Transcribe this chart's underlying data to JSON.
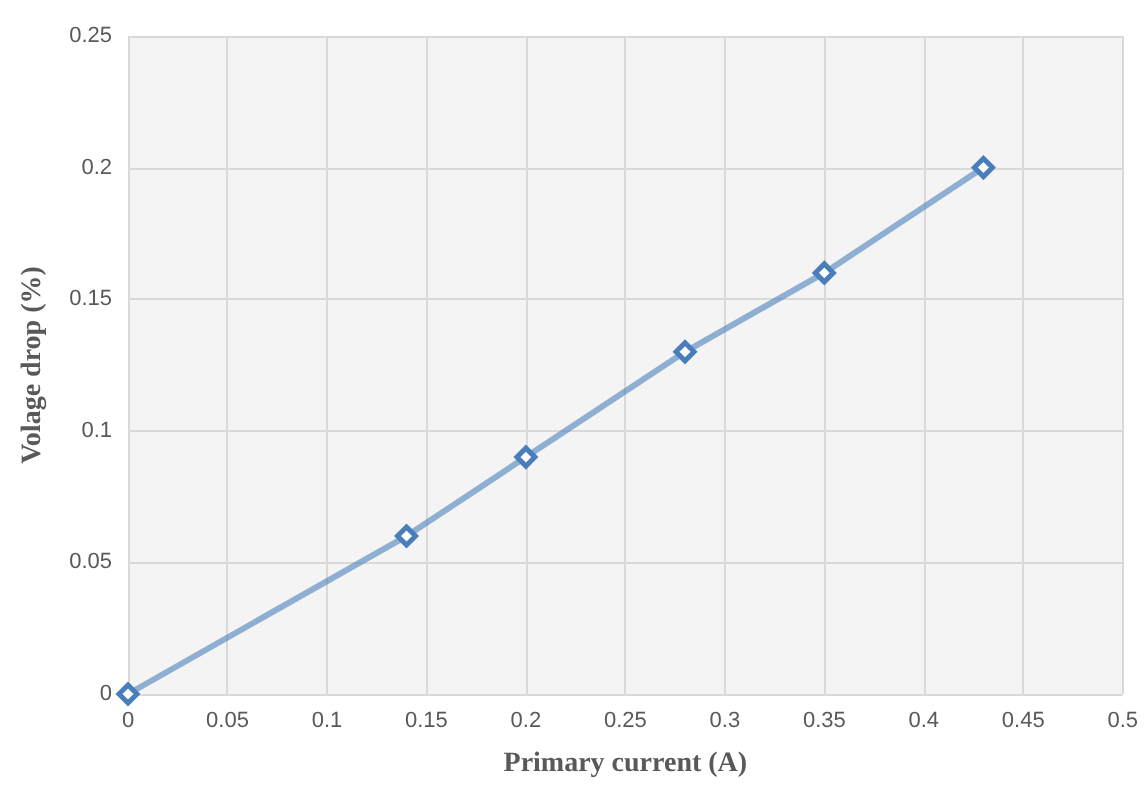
{
  "chart_data": {
    "type": "line",
    "xlabel": "Primary current (A)",
    "ylabel": "Volage drop (%)",
    "x": [
      0,
      0.14,
      0.2,
      0.28,
      0.35,
      0.43
    ],
    "series": [
      {
        "color": "#4a7ebb",
        "values": [
          0,
          0.06,
          0.09,
          0.13,
          0.16,
          0.2
        ]
      }
    ],
    "xlim": [
      0,
      0.5
    ],
    "xticks": [
      0,
      0.05,
      0.1,
      0.15,
      0.2,
      0.25,
      0.3,
      0.35,
      0.4,
      0.45,
      0.5
    ],
    "ylim": [
      0,
      0.25
    ],
    "yticks": [
      0,
      0.05,
      0.1,
      0.15,
      0.2,
      0.25
    ],
    "grid": true,
    "marker": "diamond",
    "line_style": "solid"
  }
}
